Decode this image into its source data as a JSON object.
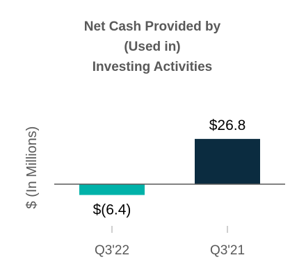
{
  "chart_data": {
    "type": "bar",
    "title_lines": [
      "Net Cash Provided by",
      "(Used in)",
      "Investing Activities"
    ],
    "ylabel": "$ (In Millions)",
    "xlabel": "",
    "categories": [
      "Q3'22",
      "Q3'21"
    ],
    "values": [
      -6.4,
      26.8
    ],
    "data_labels": [
      "$(6.4)",
      "$26.8"
    ],
    "bar_colors": [
      "#00b2a9",
      "#0b2c40"
    ],
    "ylim": [
      -8,
      40
    ],
    "grid": false,
    "legend": "none"
  },
  "colors": {
    "title": "#595959",
    "axis": "#595959",
    "tick": "#bfbfbf",
    "label": "#000000"
  }
}
